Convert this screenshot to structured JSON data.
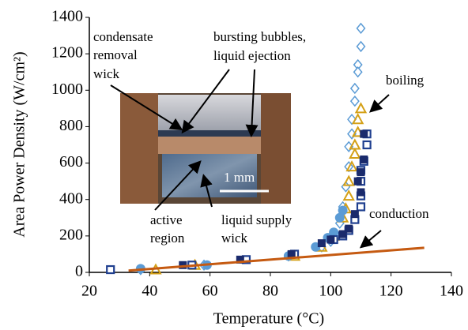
{
  "chart_data": {
    "type": "scatter",
    "x_label": "Temperature (°C)",
    "y_label": "Area Power Density (W/cm²)",
    "xlim": [
      20,
      140
    ],
    "xticks": [
      20,
      40,
      60,
      80,
      100,
      120,
      140
    ],
    "ylim": [
      0,
      1400
    ],
    "yticks": [
      0,
      200,
      400,
      600,
      800,
      1000,
      1200,
      1400
    ],
    "series": [
      {
        "marker": "diamond-open",
        "color": "#5b9bd5",
        "x": [
          110,
          110,
          109,
          109,
          108,
          108,
          107,
          107,
          106,
          106,
          105,
          104,
          103,
          101,
          100,
          97,
          86,
          58,
          37
        ],
        "values": [
          1340,
          1240,
          1140,
          1100,
          1010,
          940,
          840,
          760,
          690,
          580,
          470,
          360,
          270,
          210,
          170,
          140,
          90,
          40,
          15
        ]
      },
      {
        "marker": "triangle-open",
        "color": "#d4a017",
        "x": [
          110,
          109,
          109,
          108,
          108,
          107,
          106,
          106,
          105,
          104,
          101,
          97,
          88,
          55,
          42
        ],
        "values": [
          900,
          840,
          770,
          700,
          650,
          580,
          500,
          420,
          350,
          300,
          200,
          140,
          90,
          40,
          15
        ]
      },
      {
        "marker": "circle-filled",
        "color": "#5b9bd5",
        "x": [
          104,
          103,
          101,
          99,
          95,
          86,
          59,
          37
        ],
        "values": [
          340,
          300,
          220,
          190,
          140,
          90,
          40,
          20
        ]
      },
      {
        "marker": "square-open",
        "color": "#1f3f8f",
        "x": [
          112,
          112,
          111,
          110,
          110,
          110,
          110,
          108,
          106,
          104,
          101,
          88,
          72,
          54,
          27
        ],
        "values": [
          760,
          700,
          610,
          560,
          500,
          420,
          360,
          290,
          230,
          200,
          180,
          100,
          70,
          40,
          15
        ]
      },
      {
        "marker": "square-filled",
        "color": "#1a2a6c",
        "x": [
          111,
          111,
          110,
          109,
          110,
          108,
          106,
          104,
          100,
          97,
          87,
          70,
          51
        ],
        "values": [
          760,
          620,
          550,
          500,
          440,
          320,
          240,
          210,
          180,
          160,
          100,
          70,
          40
        ]
      },
      {
        "marker": "line",
        "color": "#c55a11",
        "x": [
          33,
          131
        ],
        "values": [
          10,
          135
        ]
      }
    ],
    "annotations": [
      {
        "lines": [
          "condensate",
          "removal",
          "wick"
        ]
      },
      {
        "lines": [
          "bursting bubbles,",
          "liquid ejection"
        ]
      },
      {
        "lines": [
          "boiling"
        ]
      },
      {
        "lines": [
          "conduction"
        ]
      },
      {
        "lines": [
          "active",
          "region"
        ]
      },
      {
        "lines": [
          "liquid supply",
          "wick"
        ]
      },
      {
        "lines": [
          "1 mm"
        ]
      }
    ]
  }
}
